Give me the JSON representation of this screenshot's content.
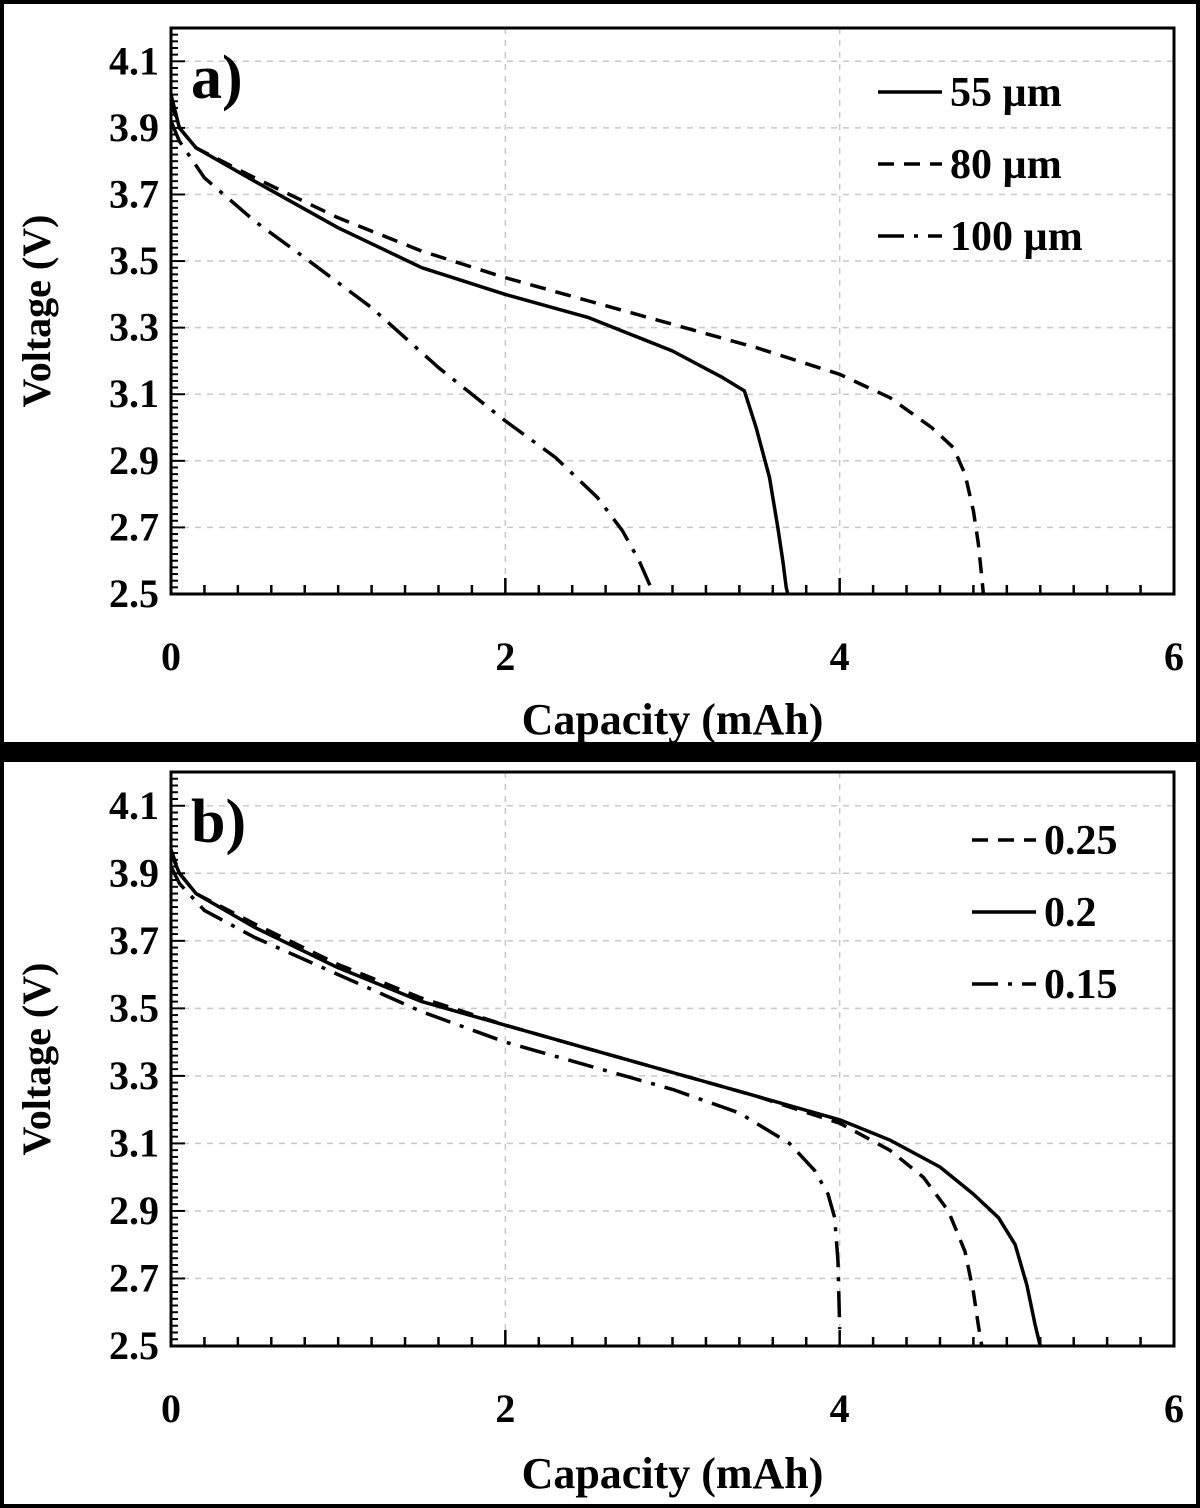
{
  "chart_data": [
    {
      "type": "line",
      "panel_label": "a)",
      "xlabel": "Capacity (mAh)",
      "ylabel": "Voltage (V)",
      "xlim": [
        0,
        6
      ],
      "ylim": [
        2.5,
        4.2
      ],
      "x_ticks": [
        "0",
        "2",
        "4",
        "6"
      ],
      "y_ticks": [
        "4.1",
        "3.9",
        "3.7",
        "3.5",
        "3.3",
        "3.1",
        "2.9",
        "2.7",
        "2.5"
      ],
      "grid": true,
      "legend_position": "top-right",
      "series": [
        {
          "name": "55 µm",
          "style": "solid",
          "x": [
            0,
            0.05,
            0.15,
            0.5,
            1.0,
            1.5,
            2.0,
            2.5,
            3.0,
            3.3,
            3.43,
            3.5,
            3.58,
            3.63,
            3.66,
            3.68,
            3.69
          ],
          "y": [
            4.0,
            3.9,
            3.84,
            3.74,
            3.6,
            3.48,
            3.4,
            3.33,
            3.23,
            3.15,
            3.11,
            3.0,
            2.85,
            2.7,
            2.6,
            2.52,
            2.5
          ]
        },
        {
          "name": "80 µm",
          "style": "dashed",
          "x": [
            0,
            0.05,
            0.15,
            0.5,
            1.0,
            1.5,
            2.0,
            2.5,
            3.0,
            3.5,
            4.0,
            4.3,
            4.55,
            4.68,
            4.75,
            4.8,
            4.83,
            4.85,
            4.86
          ],
          "y": [
            3.98,
            3.9,
            3.84,
            3.75,
            3.63,
            3.53,
            3.45,
            3.38,
            3.31,
            3.24,
            3.16,
            3.09,
            3.0,
            2.94,
            2.86,
            2.75,
            2.65,
            2.55,
            2.5
          ]
        },
        {
          "name": "100 µm",
          "style": "dashdot",
          "x": [
            0,
            0.05,
            0.2,
            0.5,
            0.8,
            1.2,
            1.6,
            2.0,
            2.3,
            2.55,
            2.7,
            2.8,
            2.87
          ],
          "y": [
            3.92,
            3.86,
            3.75,
            3.62,
            3.51,
            3.36,
            3.18,
            3.02,
            2.91,
            2.79,
            2.69,
            2.6,
            2.52
          ]
        }
      ]
    },
    {
      "type": "line",
      "panel_label": "b)",
      "xlabel": "Capacity (mAh)",
      "ylabel": "Voltage (V)",
      "xlim": [
        0,
        6
      ],
      "ylim": [
        2.5,
        4.2
      ],
      "x_ticks": [
        "0",
        "2",
        "4",
        "6"
      ],
      "y_ticks": [
        "4.1",
        "3.9",
        "3.7",
        "3.5",
        "3.3",
        "3.1",
        "2.9",
        "2.7",
        "2.5"
      ],
      "grid": true,
      "legend_position": "top-right",
      "series": [
        {
          "name": "0.25",
          "style": "dashed",
          "x": [
            0,
            0.05,
            0.15,
            0.5,
            1.0,
            1.5,
            2.0,
            2.5,
            3.0,
            3.5,
            4.0,
            4.3,
            4.5,
            4.65,
            4.75,
            4.8,
            4.83,
            4.85
          ],
          "y": [
            3.97,
            3.9,
            3.84,
            3.75,
            3.63,
            3.53,
            3.45,
            3.38,
            3.31,
            3.24,
            3.16,
            3.08,
            3.0,
            2.9,
            2.78,
            2.66,
            2.56,
            2.5
          ]
        },
        {
          "name": "0.2",
          "style": "solid",
          "x": [
            0,
            0.05,
            0.15,
            0.5,
            1.0,
            1.5,
            2.0,
            2.5,
            3.0,
            3.5,
            4.0,
            4.3,
            4.6,
            4.8,
            4.95,
            5.05,
            5.12,
            5.17,
            5.2
          ],
          "y": [
            3.96,
            3.9,
            3.84,
            3.74,
            3.62,
            3.52,
            3.45,
            3.38,
            3.31,
            3.24,
            3.17,
            3.11,
            3.03,
            2.95,
            2.88,
            2.8,
            2.68,
            2.56,
            2.5
          ]
        },
        {
          "name": "0.15",
          "style": "dashdot",
          "x": [
            0,
            0.05,
            0.2,
            0.5,
            1.0,
            1.5,
            2.0,
            2.5,
            3.0,
            3.4,
            3.7,
            3.85,
            3.93,
            3.97,
            3.99,
            4.0
          ],
          "y": [
            3.92,
            3.87,
            3.79,
            3.71,
            3.6,
            3.49,
            3.4,
            3.33,
            3.26,
            3.19,
            3.1,
            3.02,
            2.95,
            2.88,
            2.75,
            2.55
          ]
        }
      ]
    }
  ]
}
